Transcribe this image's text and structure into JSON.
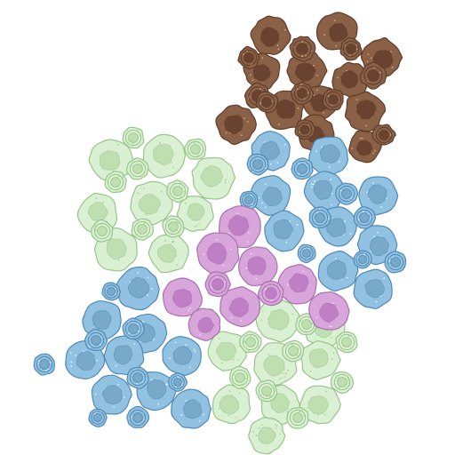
{
  "palette": {
    "brown": {
      "fill": "#8a6046",
      "edge": "#5e3d2a",
      "nucleus": "#6a4330",
      "speck": "#c7a48c"
    },
    "blue": {
      "fill": "#92c2e2",
      "edge": "#4f89b5",
      "nucleus": "#79a9c8",
      "speck": "#e2f0fa"
    },
    "green": {
      "fill": "#daf0d2",
      "edge": "#98c48a",
      "nucleus": "#bfdfb0",
      "speck": "#a9d39a"
    },
    "purple": {
      "fill": "#d9a6db",
      "edge": "#a772ad",
      "nucleus": "#bf7fc5",
      "speck": "#f1d9f2"
    }
  },
  "cell_types": [
    {
      "type": "brown",
      "icon": "brown-cell-icon"
    },
    {
      "type": "blue",
      "icon": "blue-cell-icon"
    },
    {
      "type": "green",
      "icon": "green-cell-icon"
    },
    {
      "type": "purple",
      "icon": "purple-cell-icon"
    }
  ]
}
